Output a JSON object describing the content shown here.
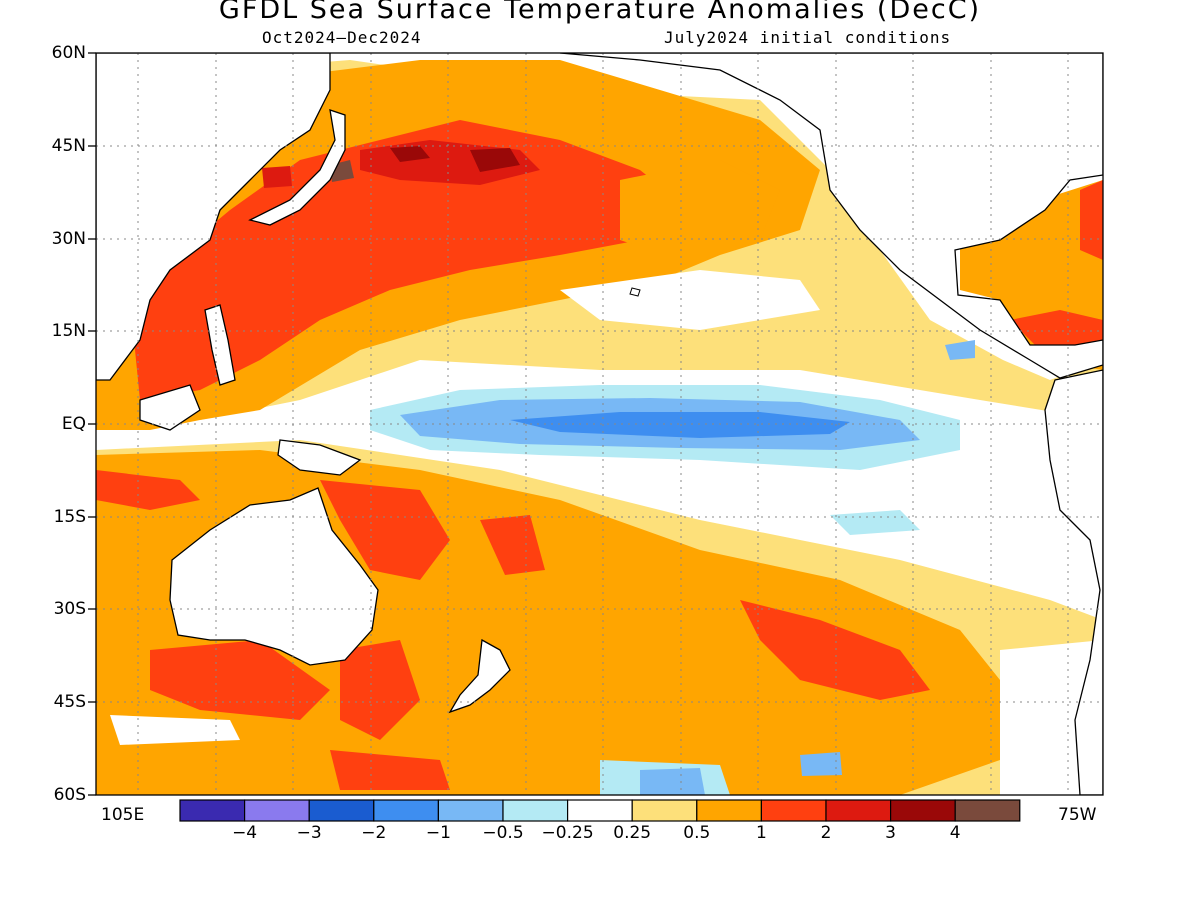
{
  "title": "GFDL Sea Surface Temperature Anomalies (DecC)",
  "subtitle_left": "Oct2024–Dec2024",
  "subtitle_right": "July2024 initial conditions",
  "x_left_label": "105E",
  "x_right_label": "75W",
  "lat_labels": [
    "60N",
    "45N",
    "30N",
    "15N",
    "EQ",
    "15S",
    "30S",
    "45S",
    "60S"
  ],
  "colorbar": {
    "boundaries": [
      "−4",
      "−3",
      "−2",
      "−1",
      "−0.5",
      "−0.25",
      "0.25",
      "0.5",
      "1",
      "2",
      "3",
      "4"
    ],
    "colors": [
      "#3a2ab0",
      "#8a7aee",
      "#1a5cd0",
      "#3e8ef0",
      "#78b8f5",
      "#b4eaf4",
      "#ffffff",
      "#fde07a",
      "#ffa500",
      "#ff4010",
      "#dd1a10",
      "#9a0808",
      "#7a4a3c"
    ]
  },
  "map_data": {
    "lon_range": [
      "105E",
      "75W"
    ],
    "lat_range": [
      "60S",
      "60N"
    ],
    "grid": true,
    "features": [
      "cold tongue of negative anomalies along equatorial central Pacific",
      "strong warm anomalies in northwest Pacific near Japan",
      "warm anomalies across South Pacific and around Australia"
    ]
  }
}
